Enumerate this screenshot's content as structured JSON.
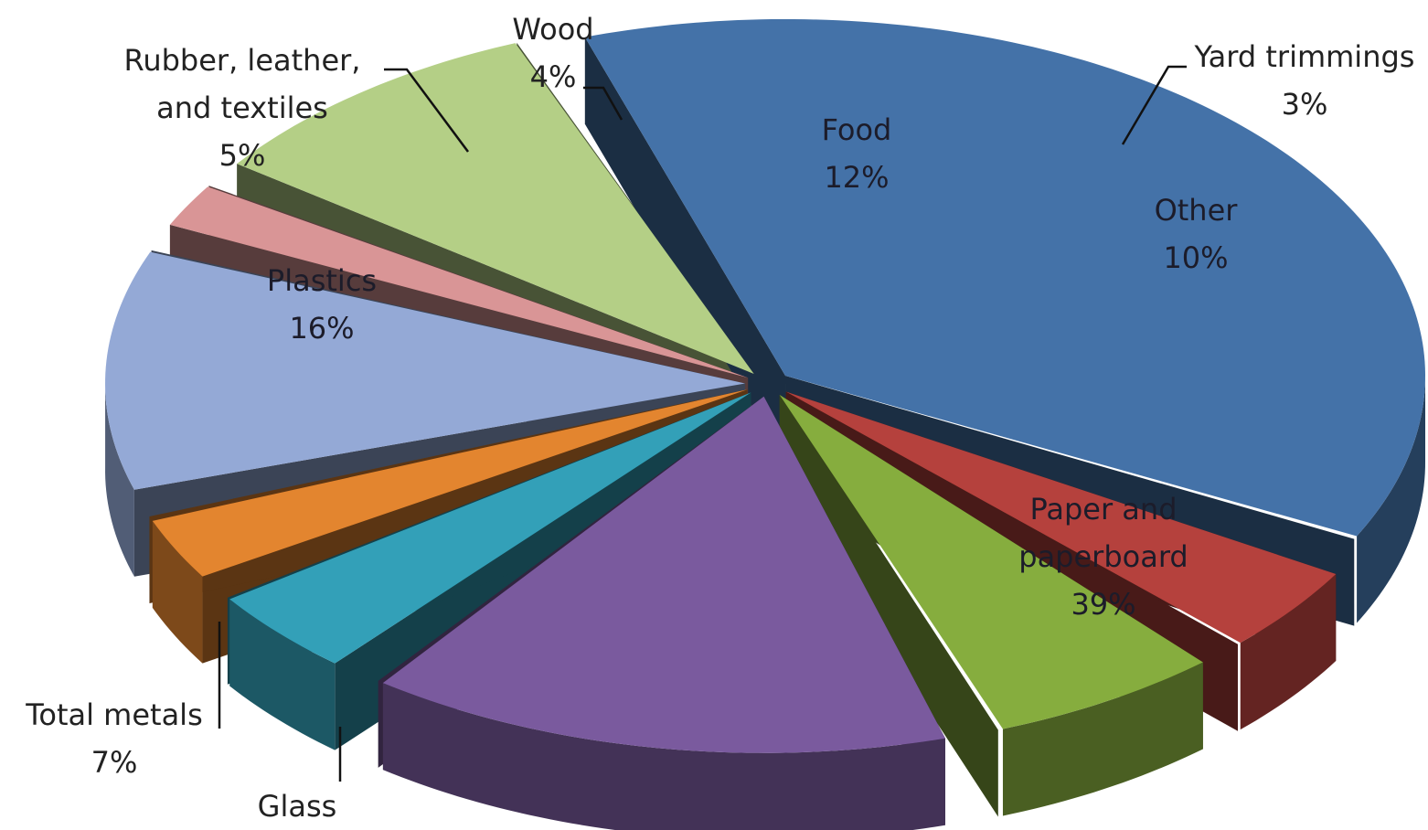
{
  "chart_data": {
    "type": "pie",
    "style": "3d-exploded",
    "title": "",
    "legend": "none",
    "slices": [
      {
        "name": "Paper and paperboard",
        "label_lines": [
          "Paper and",
          "paperboard"
        ],
        "value": 39,
        "pct": "39%",
        "color": "#4472a8",
        "label_inside": true
      },
      {
        "name": "Glass",
        "label_lines": [
          "Glass"
        ],
        "value": 5,
        "pct": "",
        "color": "#b5413d",
        "label_inside": false
      },
      {
        "name": "Total metals",
        "label_lines": [
          "Total metals"
        ],
        "value": 7,
        "pct": "7%",
        "color": "#86ad3e",
        "label_inside": false
      },
      {
        "name": "Plastics",
        "label_lines": [
          "Plastics"
        ],
        "value": 16,
        "pct": "16%",
        "color": "#7a5a9e",
        "label_inside": true
      },
      {
        "name": "Rubber, leather, and textiles",
        "label_lines": [
          "Rubber, leather,",
          "and textiles"
        ],
        "value": 5,
        "pct": "5%",
        "color": "#33a0b8",
        "label_inside": false
      },
      {
        "name": "Wood",
        "label_lines": [
          "Wood"
        ],
        "value": 4,
        "pct": "4%",
        "color": "#e3852f",
        "label_inside": false
      },
      {
        "name": "Food",
        "label_lines": [
          "Food"
        ],
        "value": 12,
        "pct": "12%",
        "color": "#94a9d6",
        "label_inside": true
      },
      {
        "name": "Yard trimmings",
        "label_lines": [
          "Yard trimmings"
        ],
        "value": 3,
        "pct": "3%",
        "color": "#d99596",
        "label_inside": false
      },
      {
        "name": "Other",
        "label_lines": [
          "Other"
        ],
        "value": 10,
        "pct": "10%",
        "color": "#b4cf86",
        "label_inside": true
      }
    ]
  }
}
